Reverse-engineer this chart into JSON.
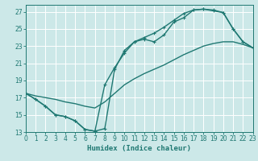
{
  "xlabel": "Humidex (Indice chaleur)",
  "bg_color": "#cce8e8",
  "grid_color": "#ffffff",
  "line_color": "#1f7872",
  "xlim": [
    0,
    23
  ],
  "ylim": [
    13,
    27.8
  ],
  "yticks": [
    13,
    15,
    17,
    19,
    21,
    23,
    25,
    27
  ],
  "xticks": [
    0,
    1,
    2,
    3,
    4,
    5,
    6,
    7,
    8,
    9,
    10,
    11,
    12,
    13,
    14,
    15,
    16,
    17,
    18,
    19,
    20,
    21,
    22,
    23
  ],
  "curve1_x": [
    0,
    1,
    2,
    3,
    4,
    5,
    6,
    7,
    8,
    9,
    10,
    11,
    12,
    13,
    14,
    15,
    16,
    17,
    18,
    19,
    20,
    21,
    22,
    23
  ],
  "curve1_y": [
    17.5,
    16.8,
    16.0,
    15.0,
    14.8,
    14.3,
    13.3,
    13.1,
    18.5,
    20.5,
    22.2,
    23.5,
    23.8,
    23.5,
    24.3,
    25.8,
    26.3,
    27.2,
    27.3,
    27.1,
    26.9,
    25.0,
    23.5,
    22.8
  ],
  "curve2_x": [
    0,
    1,
    2,
    3,
    4,
    5,
    6,
    7,
    8,
    9,
    10,
    11,
    12,
    13,
    14,
    15,
    16,
    17,
    18,
    19,
    20,
    21,
    22,
    23
  ],
  "curve2_y": [
    17.5,
    16.8,
    16.0,
    15.0,
    14.8,
    14.3,
    13.3,
    13.1,
    13.4,
    20.3,
    22.5,
    23.5,
    24.0,
    24.5,
    25.2,
    26.0,
    26.8,
    27.2,
    27.3,
    27.2,
    26.9,
    25.0,
    23.5,
    22.8
  ],
  "curve3_x": [
    0,
    1,
    2,
    3,
    4,
    5,
    6,
    7,
    8,
    9,
    10,
    11,
    12,
    13,
    14,
    15,
    16,
    17,
    18,
    19,
    20,
    21,
    22,
    23
  ],
  "curve3_y": [
    17.5,
    17.2,
    17.0,
    16.8,
    16.5,
    16.3,
    16.0,
    15.8,
    16.5,
    17.5,
    18.5,
    19.2,
    19.8,
    20.3,
    20.8,
    21.4,
    22.0,
    22.5,
    23.0,
    23.3,
    23.5,
    23.5,
    23.2,
    22.8
  ]
}
